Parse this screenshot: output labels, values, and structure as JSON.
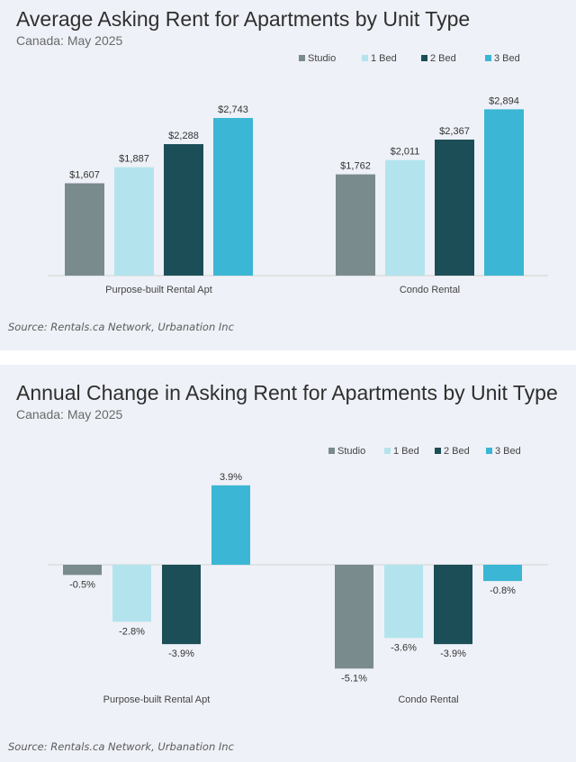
{
  "charts": [
    {
      "title": "Average Asking Rent for Apartments by Unit Type",
      "subtitle": "Canada: May 2025",
      "source": "Source: Rentals.ca Network, Urbanation Inc"
    },
    {
      "title": "Annual Change in Asking Rent for Apartments by Unit Type",
      "subtitle": "Canada: May 2025",
      "source": "Source: Rentals.ca Network, Urbanation Inc"
    }
  ],
  "chart_data": [
    {
      "type": "bar",
      "title": "Average Asking Rent for Apartments by Unit Type",
      "subtitle": "Canada: May 2025",
      "categories": [
        "Purpose-built Rental Apt",
        "Condo Rental"
      ],
      "series": [
        {
          "name": "Studio",
          "values": [
            1607,
            1762
          ],
          "labels": [
            "$1,607",
            "$1,762"
          ],
          "color": "#7a8b8e"
        },
        {
          "name": "1 Bed",
          "values": [
            1887,
            2011
          ],
          "labels": [
            "$1,887",
            "$2,011"
          ],
          "color": "#b3e4ee"
        },
        {
          "name": "2 Bed",
          "values": [
            2288,
            2367
          ],
          "labels": [
            "$2,288",
            "$2,367"
          ],
          "color": "#1c4e58"
        },
        {
          "name": "3 Bed",
          "values": [
            2743,
            2894
          ],
          "labels": [
            "$2,743",
            "$2,894"
          ],
          "color": "#3bb6d4"
        }
      ],
      "ylim": [
        0,
        3000
      ],
      "grid": false,
      "legend": "top-right",
      "source": "Source: Rentals.ca Network, Urbanation Inc"
    },
    {
      "type": "bar",
      "title": "Annual Change in Asking Rent for Apartments by Unit Type",
      "subtitle": "Canada: May 2025",
      "categories": [
        "Purpose-built Rental Apt",
        "Condo Rental"
      ],
      "series": [
        {
          "name": "Studio",
          "values": [
            -0.5,
            -5.1
          ],
          "labels": [
            "-0.5%",
            "-5.1%"
          ],
          "color": "#7a8b8e"
        },
        {
          "name": "1 Bed",
          "values": [
            -2.8,
            -3.6
          ],
          "labels": [
            "-2.8%",
            "-3.6%"
          ],
          "color": "#b3e4ee"
        },
        {
          "name": "2 Bed",
          "values": [
            -3.9,
            -3.9
          ],
          "labels": [
            "-3.9%",
            "-3.9%"
          ],
          "color": "#1c4e58"
        },
        {
          "name": "3 Bed",
          "values": [
            3.9,
            -0.8
          ],
          "labels": [
            "3.9%",
            "-0.8%"
          ],
          "color": "#3bb6d4"
        }
      ],
      "ylim": [
        -5.5,
        4.5
      ],
      "grid": false,
      "legend": "top-right",
      "source": "Source: Rentals.ca Network, Urbanation Inc"
    }
  ]
}
